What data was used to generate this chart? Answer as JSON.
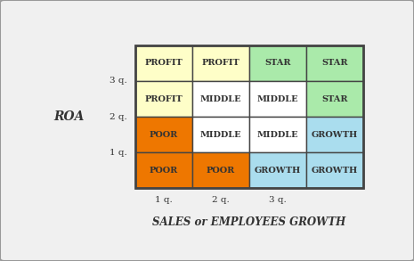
{
  "grid": [
    [
      "PROFIT",
      "PROFIT",
      "STAR",
      "STAR"
    ],
    [
      "PROFIT",
      "MIDDLE",
      "MIDDLE",
      "STAR"
    ],
    [
      "POOR",
      "MIDDLE",
      "MIDDLE",
      "GROWTH"
    ],
    [
      "POOR",
      "POOR",
      "GROWTH",
      "GROWTH"
    ]
  ],
  "colors": {
    "PROFIT": "#FEFEC8",
    "STAR": "#AAEAAA",
    "MIDDLE": "#FFFFFF",
    "POOR": "#EE7700",
    "GROWTH": "#AADDEE"
  },
  "row_tick_labels": [
    "3 q.",
    "2 q.",
    "1 q."
  ],
  "col_tick_labels": [
    "1 q.",
    "2 q.",
    "3 q."
  ],
  "xlabel": "SALES or EMPLOYEES GROWTH",
  "ylabel": "ROA",
  "border_color": "#444444",
  "text_color": "#333333",
  "background_color": "#f0f0f0",
  "fig_background": "#f0f0f0",
  "cell_fontsize": 7,
  "label_fontsize": 7.5,
  "xlabel_fontsize": 8.5
}
